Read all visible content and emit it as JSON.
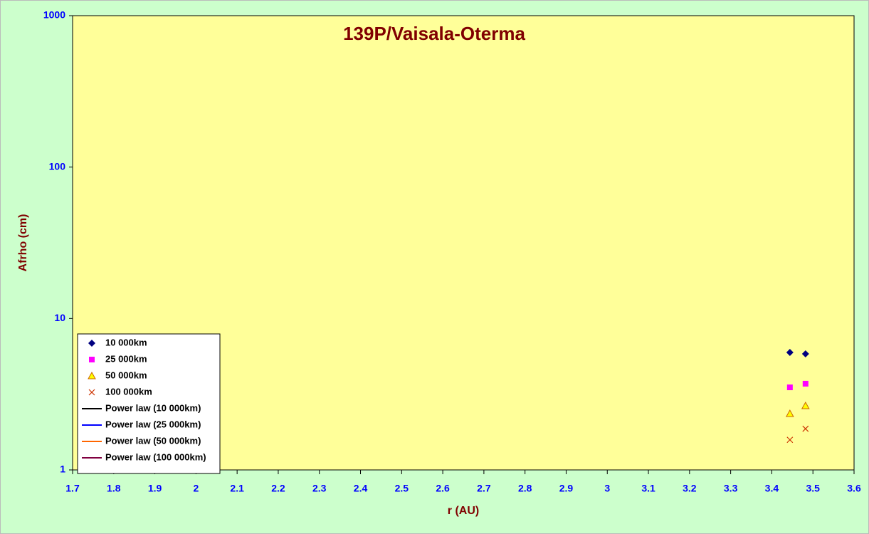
{
  "chart_data": {
    "type": "scatter",
    "title": "139P/Vaisala-Oterma",
    "x_label": "r (AU)",
    "y_label": "Afrho (cm)",
    "x": [
      3.444,
      3.482
    ],
    "series": [
      {
        "name": "10 000km",
        "marker": "diamond",
        "color": "#000080",
        "values": [
          5.97,
          5.84
        ]
      },
      {
        "name": "25 000km",
        "marker": "square",
        "color": "#ff00ff",
        "values": [
          3.51,
          3.71
        ]
      },
      {
        "name": "50 000km",
        "marker": "triangle",
        "color": "#ffff00",
        "values": [
          2.35,
          2.65
        ]
      },
      {
        "name": "100 000km",
        "marker": "x",
        "color": "#cc3300",
        "values": [
          1.58,
          1.87
        ]
      },
      {
        "name": "Power law (10 000km)",
        "marker": "line",
        "color": "#000000",
        "values": [
          null,
          null
        ]
      },
      {
        "name": "Power law (25 000km)",
        "marker": "line",
        "color": "#0000ff",
        "values": [
          null,
          null
        ]
      },
      {
        "name": "Power law (50 000km)",
        "marker": "line",
        "color": "#ff6600",
        "values": [
          null,
          null
        ]
      },
      {
        "name": "Power law (100 000km)",
        "marker": "line",
        "color": "#800040",
        "values": [
          null,
          null
        ]
      }
    ],
    "xlim": [
      1.7,
      3.6
    ],
    "xticks": [
      1.7,
      1.8,
      1.9,
      2,
      2.1,
      2.2,
      2.3,
      2.4,
      2.5,
      2.6,
      2.7,
      2.8,
      2.9,
      3,
      3.1,
      3.2,
      3.3,
      3.4,
      3.5,
      3.6
    ],
    "ylim": [
      1,
      1000
    ],
    "yticks": [
      1,
      10,
      100,
      1000
    ],
    "log_y": true,
    "legend": "bottom-left",
    "background": "#ccffcc",
    "plot_background": "#ffff99"
  }
}
